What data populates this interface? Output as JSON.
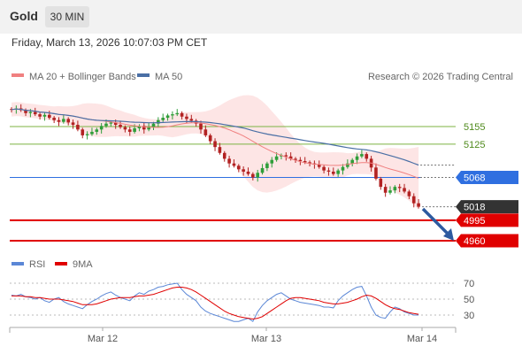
{
  "header": {
    "asset": "Gold",
    "timeframe": "30 MIN"
  },
  "timestamp": "Friday, March 13, 2026 10:07:03 PM CET",
  "legend": {
    "ma20_bb": "MA 20 + Bollinger Bands",
    "ma50": "MA 50",
    "credit": "Research © 2026 Trading Central",
    "rsi": "RSI",
    "ma9": "9MA"
  },
  "colors": {
    "ma20": "#f08080",
    "ma50": "#4a6fa5",
    "bb_fill": "#fde0e0",
    "candle_up": "#2f9e3a",
    "candle_down": "#b22222",
    "support": "#e00000",
    "resistance": "#7cb342",
    "pivot": "#2f6fe0",
    "price_label": "#333333",
    "arrow": "#2d5aa0",
    "rsi": "#5b87d6"
  },
  "chart_data": [
    {
      "type": "candlestick",
      "title": "Gold",
      "timeframe": "30 MIN",
      "x_ticks": [
        "Mar 12",
        "Mar 13",
        "Mar 14"
      ],
      "ylim": [
        4940,
        5210
      ],
      "series": [
        {
          "name": "MA 20 + Bollinger Bands"
        },
        {
          "name": "MA 50"
        }
      ],
      "levels": [
        {
          "label": "5155",
          "value": 5155,
          "kind": "resistance"
        },
        {
          "label": "5125",
          "value": 5125,
          "kind": "resistance"
        },
        {
          "label": "5068",
          "value": 5068,
          "kind": "pivot"
        },
        {
          "label": "5018",
          "value": 5018,
          "kind": "last-price"
        },
        {
          "label": "4995",
          "value": 4995,
          "kind": "support"
        },
        {
          "label": "4960",
          "value": 4960,
          "kind": "support"
        }
      ],
      "close": [
        5184,
        5186,
        5183,
        5178,
        5180,
        5176,
        5172,
        5175,
        5170,
        5166,
        5163,
        5168,
        5162,
        5158,
        5150,
        5140,
        5142,
        5146,
        5150,
        5156,
        5160,
        5162,
        5158,
        5154,
        5150,
        5146,
        5152,
        5156,
        5150,
        5154,
        5160,
        5166,
        5170,
        5174,
        5176,
        5178,
        5172,
        5168,
        5165,
        5160,
        5150,
        5140,
        5130,
        5120,
        5110,
        5100,
        5092,
        5088,
        5082,
        5078,
        5074,
        5068,
        5076,
        5084,
        5092,
        5098,
        5104,
        5106,
        5104,
        5100,
        5098,
        5096,
        5094,
        5092,
        5090,
        5086,
        5080,
        5078,
        5074,
        5080,
        5086,
        5092,
        5098,
        5104,
        5108,
        5100,
        5085,
        5066,
        5052,
        5042,
        5046,
        5052,
        5050,
        5044,
        5036,
        5024,
        5018
      ]
    },
    {
      "type": "line",
      "title": "RSI",
      "series": [
        {
          "name": "RSI"
        },
        {
          "name": "9MA"
        }
      ],
      "ylim": [
        20,
        80
      ],
      "y_ticks": [
        70,
        50,
        30
      ],
      "rsi": [
        55,
        54,
        56,
        53,
        52,
        50,
        52,
        48,
        46,
        50,
        52,
        47,
        44,
        42,
        40,
        38,
        43,
        47,
        50,
        54,
        57,
        59,
        55,
        52,
        50,
        48,
        54,
        58,
        56,
        60,
        62,
        65,
        66,
        68,
        69,
        70,
        62,
        56,
        52,
        48,
        40,
        35,
        32,
        30,
        28,
        26,
        24,
        22,
        22,
        24,
        26,
        22,
        34,
        42,
        48,
        52,
        56,
        58,
        54,
        50,
        48,
        46,
        45,
        44,
        43,
        42,
        40,
        40,
        39,
        48,
        54,
        58,
        62,
        65,
        66,
        54,
        40,
        30,
        27,
        26,
        34,
        40,
        38,
        34,
        32,
        30,
        30
      ],
      "ma9": [
        54,
        54,
        54,
        53,
        53,
        52,
        52,
        51,
        50,
        50,
        50,
        49,
        48,
        47,
        45,
        43,
        43,
        43,
        44,
        46,
        48,
        50,
        51,
        52,
        52,
        52,
        53,
        54,
        54,
        55,
        56,
        58,
        60,
        62,
        64,
        65,
        65,
        64,
        62,
        59,
        55,
        51,
        47,
        43,
        39,
        35,
        32,
        30,
        28,
        27,
        26,
        25,
        26,
        28,
        32,
        36,
        40,
        44,
        48,
        51,
        52,
        52,
        51,
        50,
        49,
        48,
        46,
        45,
        44,
        44,
        45,
        46,
        48,
        50,
        53,
        55,
        54,
        51,
        47,
        43,
        40,
        38,
        37,
        35,
        33,
        32,
        31
      ]
    }
  ]
}
